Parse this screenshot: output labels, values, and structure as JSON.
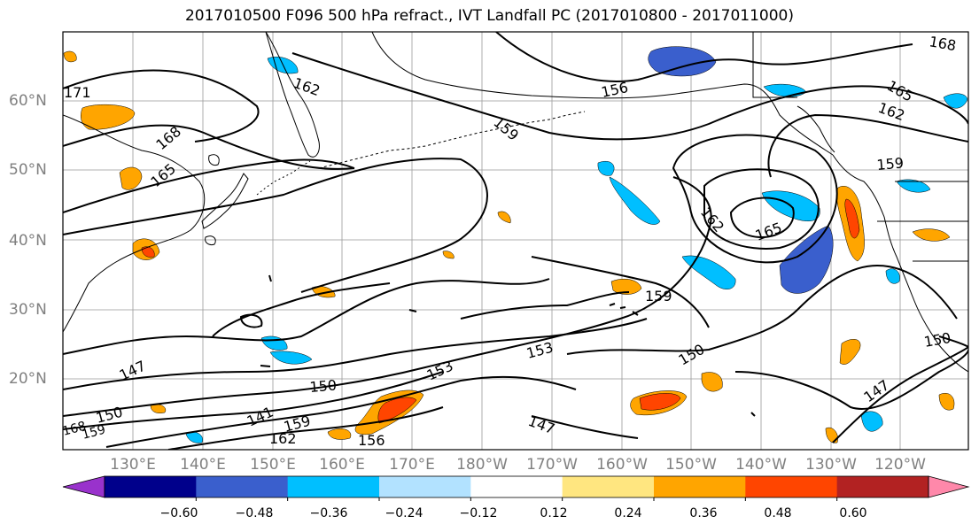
{
  "title": "2017010500 F096 500 hPa refract., IVT Landfall PC (2017010800 - 2017011000)",
  "lat_labels": [
    "60°N",
    "50°N",
    "40°N",
    "30°N",
    "20°N"
  ],
  "lon_labels": [
    "130°E",
    "140°E",
    "150°E",
    "160°E",
    "170°E",
    "180°W",
    "170°W",
    "160°W",
    "150°W",
    "140°W",
    "130°W",
    "120°W"
  ],
  "contour_labels": [
    "171",
    "162",
    "156",
    "159",
    "168",
    "165",
    "168",
    "162",
    "165",
    "159",
    "162",
    "165",
    "159",
    "153",
    "153",
    "150",
    "150",
    "147",
    "147",
    "141",
    "150",
    "159",
    "162",
    "156",
    "147",
    "147",
    "150",
    "159",
    "168"
  ],
  "colorbar": {
    "tick_labels": [
      "−0.60",
      "−0.48",
      "−0.36",
      "−0.24",
      "−0.12",
      "0.12",
      "0.24",
      "0.36",
      "0.48",
      "0.60"
    ],
    "colors": [
      "#9932cc",
      "#00008b",
      "#3a5fcd",
      "#00bfff",
      "#b2e2ff",
      "#ffffff",
      "#ffe680",
      "#ffa500",
      "#ff4500",
      "#b22222",
      "#ff88aa"
    ]
  },
  "colors": {
    "grid": "#999999",
    "coast": "#000000",
    "contour": "#000000",
    "axis_label": "#808080"
  }
}
